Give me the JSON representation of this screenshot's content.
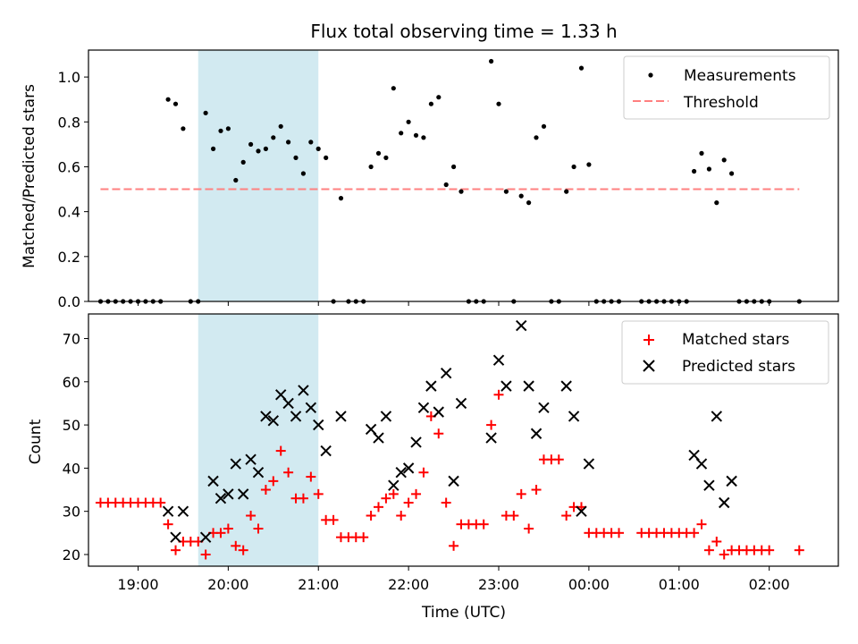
{
  "title": "Flux total observing time = 1.33 h",
  "colors": {
    "measurement": "#000000",
    "threshold": "#ff8080",
    "matched": "#ff0000",
    "predicted": "#000000",
    "shade": "#add8e6"
  },
  "chart_data": [
    {
      "type": "scatter",
      "panel": "top",
      "ylabel": "Matched/Predicted stars",
      "xlabel": "",
      "xlim": [
        "18:27",
        "02:46"
      ],
      "ylim": [
        0,
        1.12
      ],
      "yticks": [
        "0.0",
        "0.2",
        "0.4",
        "0.6",
        "0.8",
        "1.0"
      ],
      "legend": {
        "position": "upper right",
        "items": [
          "Measurements",
          "Threshold"
        ]
      },
      "shaded_interval": [
        "19:40",
        "21:00"
      ],
      "threshold": {
        "name": "Threshold",
        "value": 0.5,
        "x": [
          "18:35",
          "02:20"
        ]
      },
      "series": [
        {
          "name": "Measurements",
          "points": [
            [
              "18:35",
              0
            ],
            [
              "18:40",
              0
            ],
            [
              "18:45",
              0
            ],
            [
              "18:50",
              0
            ],
            [
              "18:55",
              0
            ],
            [
              "19:00",
              0
            ],
            [
              "19:05",
              0
            ],
            [
              "19:10",
              0
            ],
            [
              "19:15",
              0
            ],
            [
              "19:20",
              0.9
            ],
            [
              "19:25",
              0.88
            ],
            [
              "19:30",
              0.77
            ],
            [
              "19:35",
              0
            ],
            [
              "19:40",
              0
            ],
            [
              "19:45",
              0.84
            ],
            [
              "19:50",
              0.68
            ],
            [
              "19:55",
              0.76
            ],
            [
              "20:00",
              0.77
            ],
            [
              "20:05",
              0.54
            ],
            [
              "20:10",
              0.62
            ],
            [
              "20:15",
              0.7
            ],
            [
              "20:20",
              0.67
            ],
            [
              "20:25",
              0.68
            ],
            [
              "20:30",
              0.73
            ],
            [
              "20:35",
              0.78
            ],
            [
              "20:40",
              0.71
            ],
            [
              "20:45",
              0.64
            ],
            [
              "20:50",
              0.57
            ],
            [
              "20:55",
              0.71
            ],
            [
              "21:00",
              0.68
            ],
            [
              "21:05",
              0.64
            ],
            [
              "21:10",
              0
            ],
            [
              "21:15",
              0.46
            ],
            [
              "21:20",
              0
            ],
            [
              "21:25",
              0
            ],
            [
              "21:30",
              0
            ],
            [
              "21:35",
              0.6
            ],
            [
              "21:40",
              0.66
            ],
            [
              "21:45",
              0.64
            ],
            [
              "21:50",
              0.95
            ],
            [
              "21:55",
              0.75
            ],
            [
              "22:00",
              0.8
            ],
            [
              "22:05",
              0.74
            ],
            [
              "22:10",
              0.73
            ],
            [
              "22:15",
              0.88
            ],
            [
              "22:20",
              0.91
            ],
            [
              "22:25",
              0.52
            ],
            [
              "22:30",
              0.6
            ],
            [
              "22:35",
              0.49
            ],
            [
              "22:40",
              0
            ],
            [
              "22:45",
              0
            ],
            [
              "22:50",
              0
            ],
            [
              "22:55",
              1.07
            ],
            [
              "23:00",
              0.88
            ],
            [
              "23:05",
              0.49
            ],
            [
              "23:10",
              0
            ],
            [
              "23:15",
              0.47
            ],
            [
              "23:20",
              0.44
            ],
            [
              "23:25",
              0.73
            ],
            [
              "23:30",
              0.78
            ],
            [
              "23:35",
              0
            ],
            [
              "23:40",
              0
            ],
            [
              "23:45",
              0.49
            ],
            [
              "23:50",
              0.6
            ],
            [
              "23:55",
              1.04
            ],
            [
              "00:00",
              0.61
            ],
            [
              "00:05",
              0
            ],
            [
              "00:10",
              0
            ],
            [
              "00:15",
              0
            ],
            [
              "00:20",
              0
            ],
            [
              "00:35",
              0
            ],
            [
              "00:40",
              0
            ],
            [
              "00:45",
              0
            ],
            [
              "00:50",
              0
            ],
            [
              "00:55",
              0
            ],
            [
              "01:00",
              0
            ],
            [
              "01:05",
              0
            ],
            [
              "01:10",
              0.58
            ],
            [
              "01:15",
              0.66
            ],
            [
              "01:20",
              0.59
            ],
            [
              "01:25",
              0.44
            ],
            [
              "01:30",
              0.63
            ],
            [
              "01:35",
              0.57
            ],
            [
              "01:40",
              0
            ],
            [
              "01:45",
              0
            ],
            [
              "01:50",
              0
            ],
            [
              "01:55",
              0
            ],
            [
              "02:00",
              0
            ],
            [
              "02:20",
              0
            ]
          ]
        }
      ]
    },
    {
      "type": "scatter",
      "panel": "bottom",
      "xlabel": "Time (UTC)",
      "ylabel": "Count",
      "xlim": [
        "18:27",
        "02:46"
      ],
      "ylim": [
        17.3,
        75.7
      ],
      "xticks": [
        "19:00",
        "20:00",
        "21:00",
        "22:00",
        "23:00",
        "00:00",
        "01:00",
        "02:00"
      ],
      "yticks": [
        "20",
        "30",
        "40",
        "50",
        "60",
        "70"
      ],
      "legend": {
        "position": "upper right",
        "items": [
          "Matched stars",
          "Predicted stars"
        ]
      },
      "shaded_interval": [
        "19:40",
        "21:00"
      ],
      "series": [
        {
          "name": "Matched stars",
          "marker": "plus",
          "points": [
            [
              "18:35",
              32
            ],
            [
              "18:40",
              32
            ],
            [
              "18:45",
              32
            ],
            [
              "18:50",
              32
            ],
            [
              "18:55",
              32
            ],
            [
              "19:00",
              32
            ],
            [
              "19:05",
              32
            ],
            [
              "19:10",
              32
            ],
            [
              "19:15",
              32
            ],
            [
              "19:20",
              27
            ],
            [
              "19:25",
              21
            ],
            [
              "19:30",
              23
            ],
            [
              "19:35",
              23
            ],
            [
              "19:40",
              23
            ],
            [
              "19:45",
              20
            ],
            [
              "19:50",
              25
            ],
            [
              "19:55",
              25
            ],
            [
              "20:00",
              26
            ],
            [
              "20:05",
              22
            ],
            [
              "20:10",
              21
            ],
            [
              "20:15",
              29
            ],
            [
              "20:20",
              26
            ],
            [
              "20:25",
              35
            ],
            [
              "20:30",
              37
            ],
            [
              "20:35",
              44
            ],
            [
              "20:40",
              39
            ],
            [
              "20:45",
              33
            ],
            [
              "20:50",
              33
            ],
            [
              "20:55",
              38
            ],
            [
              "21:00",
              34
            ],
            [
              "21:05",
              28
            ],
            [
              "21:10",
              28
            ],
            [
              "21:15",
              24
            ],
            [
              "21:20",
              24
            ],
            [
              "21:25",
              24
            ],
            [
              "21:30",
              24
            ],
            [
              "21:35",
              29
            ],
            [
              "21:40",
              31
            ],
            [
              "21:45",
              33
            ],
            [
              "21:50",
              34
            ],
            [
              "21:55",
              29
            ],
            [
              "22:00",
              32
            ],
            [
              "22:05",
              34
            ],
            [
              "22:10",
              39
            ],
            [
              "22:15",
              52
            ],
            [
              "22:20",
              48
            ],
            [
              "22:25",
              32
            ],
            [
              "22:30",
              22
            ],
            [
              "22:35",
              27
            ],
            [
              "22:40",
              27
            ],
            [
              "22:45",
              27
            ],
            [
              "22:50",
              27
            ],
            [
              "22:55",
              50
            ],
            [
              "23:00",
              57
            ],
            [
              "23:05",
              29
            ],
            [
              "23:10",
              29
            ],
            [
              "23:15",
              34
            ],
            [
              "23:20",
              26
            ],
            [
              "23:25",
              35
            ],
            [
              "23:30",
              42
            ],
            [
              "23:35",
              42
            ],
            [
              "23:40",
              42
            ],
            [
              "23:45",
              29
            ],
            [
              "23:50",
              31
            ],
            [
              "23:55",
              31
            ],
            [
              "00:00",
              25
            ],
            [
              "00:05",
              25
            ],
            [
              "00:10",
              25
            ],
            [
              "00:15",
              25
            ],
            [
              "00:20",
              25
            ],
            [
              "00:35",
              25
            ],
            [
              "00:40",
              25
            ],
            [
              "00:45",
              25
            ],
            [
              "00:50",
              25
            ],
            [
              "00:55",
              25
            ],
            [
              "01:00",
              25
            ],
            [
              "01:05",
              25
            ],
            [
              "01:10",
              25
            ],
            [
              "01:15",
              27
            ],
            [
              "01:20",
              21
            ],
            [
              "01:25",
              23
            ],
            [
              "01:30",
              20
            ],
            [
              "01:35",
              21
            ],
            [
              "01:40",
              21
            ],
            [
              "01:45",
              21
            ],
            [
              "01:50",
              21
            ],
            [
              "01:55",
              21
            ],
            [
              "02:00",
              21
            ],
            [
              "02:20",
              21
            ]
          ]
        },
        {
          "name": "Predicted stars",
          "marker": "x",
          "points": [
            [
              "19:20",
              30
            ],
            [
              "19:25",
              24
            ],
            [
              "19:30",
              30
            ],
            [
              "19:45",
              24
            ],
            [
              "19:50",
              37
            ],
            [
              "19:55",
              33
            ],
            [
              "20:00",
              34
            ],
            [
              "20:05",
              41
            ],
            [
              "20:10",
              34
            ],
            [
              "20:15",
              42
            ],
            [
              "20:20",
              39
            ],
            [
              "20:25",
              52
            ],
            [
              "20:30",
              51
            ],
            [
              "20:35",
              57
            ],
            [
              "20:40",
              55
            ],
            [
              "20:45",
              52
            ],
            [
              "20:50",
              58
            ],
            [
              "20:55",
              54
            ],
            [
              "21:00",
              50
            ],
            [
              "21:05",
              44
            ],
            [
              "21:15",
              52
            ],
            [
              "21:35",
              49
            ],
            [
              "21:40",
              47
            ],
            [
              "21:45",
              52
            ],
            [
              "21:50",
              36
            ],
            [
              "21:55",
              39
            ],
            [
              "22:00",
              40
            ],
            [
              "22:05",
              46
            ],
            [
              "22:10",
              54
            ],
            [
              "22:15",
              59
            ],
            [
              "22:20",
              53
            ],
            [
              "22:25",
              62
            ],
            [
              "22:30",
              37
            ],
            [
              "22:35",
              55
            ],
            [
              "22:55",
              47
            ],
            [
              "23:00",
              65
            ],
            [
              "23:05",
              59
            ],
            [
              "23:15",
              73
            ],
            [
              "23:20",
              59
            ],
            [
              "23:25",
              48
            ],
            [
              "23:30",
              54
            ],
            [
              "23:45",
              59
            ],
            [
              "23:50",
              52
            ],
            [
              "23:55",
              30
            ],
            [
              "00:00",
              41
            ],
            [
              "01:10",
              43
            ],
            [
              "01:15",
              41
            ],
            [
              "01:20",
              36
            ],
            [
              "01:25",
              52
            ],
            [
              "01:30",
              32
            ],
            [
              "01:35",
              37
            ]
          ]
        }
      ]
    }
  ]
}
